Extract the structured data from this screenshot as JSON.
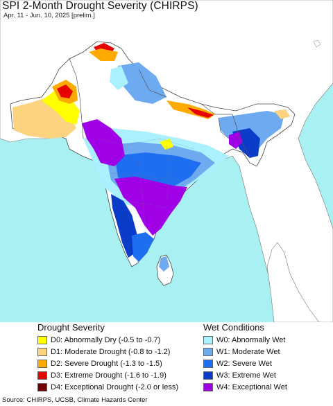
{
  "title": "SPI 2-Month Drought Severity (CHIRPS)",
  "subtitle": "Apr. 11 - Jun. 10, 2025 [prelim.]",
  "colors": {
    "ocean": "#a8f0f2",
    "land_outside": "#ffffff",
    "border": "#555555",
    "D0": "#ffff00",
    "D1": "#fcd37f",
    "D2": "#ffaa00",
    "D3": "#e60000",
    "D4": "#730000",
    "W0": "#aaf0ff",
    "W1": "#6eaaf0",
    "W2": "#1e6ef0",
    "W3": "#0a3cc8",
    "W4": "#a000e6"
  },
  "legend": {
    "drought_title": "Drought Severity",
    "wet_title": "Wet Conditions",
    "drought": [
      {
        "code": "D0",
        "label": "D0: Abnormally Dry (-0.5 to -0.7)"
      },
      {
        "code": "D1",
        "label": "D1: Moderate Drought (-0.8 to -1.2)"
      },
      {
        "code": "D2",
        "label": "D2: Severe Drought (-1.3 to -1.5)"
      },
      {
        "code": "D3",
        "label": "D3: Extreme Drought (-1.6 to -1.9)"
      },
      {
        "code": "D4",
        "label": "D4: Exceptional Drought (-2.0 or less)"
      }
    ],
    "wet": [
      {
        "code": "W0",
        "label": "W0: Abnormally Wet"
      },
      {
        "code": "W1",
        "label": "W1: Moderate Wet"
      },
      {
        "code": "W2",
        "label": "W2: Severe Wet"
      },
      {
        "code": "W3",
        "label": "W3: Extreme Wet"
      },
      {
        "code": "W4",
        "label": "W4: Exceptional Wet"
      }
    ]
  },
  "source": "Source: CHIRPS, UCSB, Climate Hazards Center"
}
